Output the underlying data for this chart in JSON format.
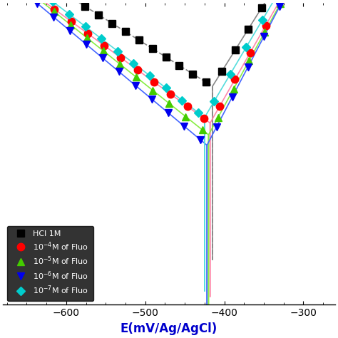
{
  "xlabel": "E(mV/Ag/AgCl)",
  "xlabel_color": "#0000cc",
  "xlim": [
    -680,
    -260
  ],
  "ylim": [
    -3.8,
    0.55
  ],
  "background_color": "#ffffff",
  "series": [
    {
      "label": "HCl 1M",
      "marker_color": "#000000",
      "line_color": "#888888",
      "line_style": "--",
      "marker": "s",
      "markersize": 6.5,
      "Ecorr": -415,
      "ba": 55,
      "bc": 140,
      "icorr_log": -0.65,
      "n_cat_markers": 16,
      "n_an_markers": 9
    },
    {
      "label": "10$^{-4}$M of Fluo",
      "marker_color": "#ff0000",
      "line_color": "#ff88aa",
      "line_style": "-",
      "marker": "o",
      "markersize": 7.5,
      "Ecorr": -418,
      "ba": 50,
      "bc": 120,
      "icorr_log": -1.18,
      "n_cat_markers": 13,
      "n_an_markers": 8
    },
    {
      "label": "10$^{-5}$M of Fluo",
      "marker_color": "#44cc00",
      "line_color": "#88ee44",
      "line_style": "-",
      "marker": "^",
      "markersize": 7,
      "Ecorr": -420,
      "ba": 48,
      "bc": 110,
      "icorr_log": -1.35,
      "n_cat_markers": 13,
      "n_an_markers": 8
    },
    {
      "label": "10$^{-6}$M of Fluo",
      "marker_color": "#0000ee",
      "line_color": "#4466ff",
      "line_style": "-",
      "marker": "v",
      "markersize": 7.5,
      "Ecorr": -422,
      "ba": 46,
      "bc": 105,
      "icorr_log": -1.5,
      "n_cat_markers": 13,
      "n_an_markers": 8
    },
    {
      "label": "10$^{-7}$M of Fluo",
      "marker_color": "#00cccc",
      "line_color": "#55dddd",
      "line_style": "-",
      "marker": "D",
      "markersize": 6.5,
      "Ecorr": -425,
      "ba": 52,
      "bc": 115,
      "icorr_log": -1.1,
      "n_cat_markers": 13,
      "n_an_markers": 8
    }
  ]
}
